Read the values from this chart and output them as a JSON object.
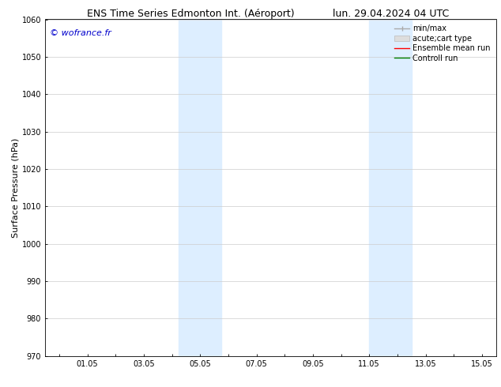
{
  "title_left": "ENS Time Series Edmonton Int. (Aéroport)",
  "title_right": "lun. 29.04.2024 04 UTC",
  "ylabel": "Surface Pressure (hPa)",
  "watermark": "© wofrance.fr",
  "watermark_color": "#0000cc",
  "ylim": [
    970,
    1060
  ],
  "yticks": [
    970,
    980,
    990,
    1000,
    1010,
    1020,
    1030,
    1040,
    1050,
    1060
  ],
  "xlim_start": -0.5,
  "xlim_end": 15.5,
  "xtick_labels": [
    "",
    "01.05",
    "",
    "03.05",
    "",
    "05.05",
    "",
    "07.05",
    "",
    "09.05",
    "",
    "11.05",
    "",
    "13.05",
    "",
    "15.05"
  ],
  "xtick_positions": [
    0,
    1,
    2,
    3,
    4,
    5,
    6,
    7,
    8,
    9,
    10,
    11,
    12,
    13,
    14,
    15
  ],
  "shaded_regions": [
    {
      "x_start": 4.25,
      "x_end": 5.75
    },
    {
      "x_start": 11.0,
      "x_end": 12.5
    }
  ],
  "shaded_color": "#ddeeff",
  "grid_color": "#cccccc",
  "bg_color": "#ffffff",
  "title_fontsize": 9,
  "axis_label_fontsize": 8,
  "tick_fontsize": 7,
  "legend_fontsize": 7
}
